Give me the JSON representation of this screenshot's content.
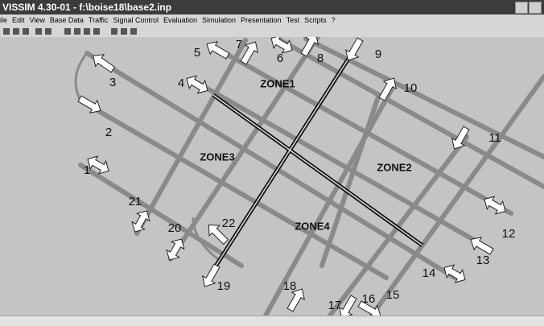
{
  "window": {
    "title": "VISSIM 4.30-01 - f:\\boise18\\base2.inp"
  },
  "menu": [
    "ile",
    "Edit",
    "View",
    "Base Data",
    "Traffic",
    "Signal Control",
    "Evaluation",
    "Simulation",
    "Presentation",
    "Test",
    "Scripts",
    "?"
  ],
  "canvas": {
    "zones": [
      "ZONE1",
      "ZONE2",
      "ZONE3",
      "ZONE4"
    ],
    "approaches": [
      "1",
      "2",
      "3",
      "4",
      "5",
      "6",
      "7",
      "8",
      "9",
      "10",
      "11",
      "12",
      "13",
      "14",
      "15",
      "16",
      "17",
      "18",
      "19",
      "20",
      "21",
      "22"
    ]
  }
}
